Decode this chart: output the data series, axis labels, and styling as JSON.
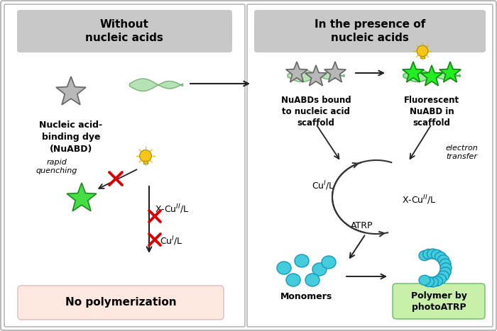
{
  "fig_width": 7.0,
  "fig_height": 4.67,
  "bg_color": "#ffffff",
  "title_bg": "#c8c8c8",
  "left_title": "Without\nnucleic acids",
  "right_title": "In the presence of\nnucleic acids",
  "nuabd_label": "Nucleic acid-\nbinding dye\n(NuABD)",
  "nuabds_bound_label": "NuABDs bound\nto nucleic acid\nscaffold",
  "fluorescent_label": "Fluorescent\nNuABD in\nscaffold",
  "rapid_quenching": "rapid\nquenching",
  "electron_transfer": "electron\ntransfer",
  "atrp_label": "ATRP",
  "no_poly_label": "No polymerization",
  "poly_label": "Polymer by\nphotoATRP",
  "monomers_label": "Monomers",
  "no_poly_bg": "#ffe8e0",
  "poly_bg": "#c8f0a8",
  "star_gray": "#b8b8b8",
  "star_green": "#44dd44",
  "star_green_bright": "#22ee22",
  "arrow_color": "#222222",
  "red_x": "#dd0000",
  "bulb_color": "#f5c518",
  "cyan_color": "#44ccdd",
  "cyan_dark": "#1199bb",
  "dna_color": "#66aa66",
  "dna_fill": "#aaddaa"
}
